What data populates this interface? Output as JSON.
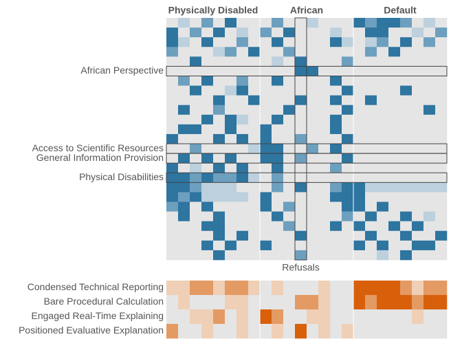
{
  "chart_data": [
    {
      "type": "heatmap",
      "column_groups": [
        "Physically Disabled",
        "African",
        "Default"
      ],
      "column_label": "Refusals",
      "highlight_column": 11,
      "colors": [
        "#e5e5e5",
        "#bcd0dd",
        "#6d9fbf",
        "#2e75a0"
      ],
      "row_labels": [
        null,
        null,
        null,
        null,
        null,
        "African Perspective",
        null,
        null,
        null,
        null,
        null,
        null,
        null,
        "Access to Scientific Resources",
        "General Information Provision",
        null,
        "Physical Disabilities",
        null,
        null,
        null,
        null,
        null,
        null,
        null,
        null
      ],
      "values": [
        [
          0,
          1,
          0,
          2,
          0,
          3,
          0,
          0,
          0,
          2,
          0,
          0,
          1,
          0,
          0,
          0,
          3,
          2,
          3,
          3,
          2,
          0,
          1,
          0
        ],
        [
          3,
          0,
          2,
          0,
          3,
          0,
          1,
          0,
          2,
          0,
          3,
          0,
          0,
          0,
          1,
          0,
          0,
          3,
          3,
          0,
          0,
          1,
          0,
          2
        ],
        [
          3,
          1,
          0,
          3,
          0,
          0,
          2,
          0,
          0,
          3,
          0,
          0,
          0,
          0,
          3,
          1,
          0,
          1,
          2,
          0,
          3,
          0,
          2,
          0
        ],
        [
          2,
          0,
          0,
          0,
          1,
          2,
          0,
          3,
          0,
          0,
          2,
          0,
          0,
          0,
          0,
          0,
          0,
          2,
          0,
          3,
          0,
          0,
          0,
          0
        ],
        [
          0,
          0,
          3,
          0,
          0,
          0,
          0,
          0,
          0,
          1,
          0,
          3,
          0,
          0,
          0,
          2,
          0,
          0,
          0,
          0,
          0,
          0,
          0,
          0
        ],
        [
          0,
          0,
          0,
          0,
          0,
          0,
          0,
          0,
          0,
          0,
          0,
          3,
          3,
          0,
          0,
          0,
          0,
          0,
          0,
          0,
          0,
          0,
          0,
          0
        ],
        [
          0,
          2,
          0,
          3,
          0,
          0,
          2,
          0,
          0,
          3,
          0,
          0,
          0,
          0,
          3,
          0,
          0,
          0,
          0,
          0,
          0,
          0,
          0,
          0
        ],
        [
          0,
          0,
          3,
          0,
          0,
          1,
          3,
          0,
          0,
          0,
          0,
          0,
          0,
          0,
          0,
          3,
          0,
          0,
          0,
          0,
          3,
          0,
          0,
          0
        ],
        [
          0,
          0,
          0,
          0,
          3,
          0,
          0,
          3,
          0,
          0,
          0,
          3,
          0,
          0,
          3,
          0,
          0,
          3,
          0,
          0,
          0,
          0,
          0,
          0
        ],
        [
          0,
          3,
          0,
          0,
          2,
          0,
          0,
          0,
          0,
          0,
          3,
          0,
          0,
          0,
          0,
          3,
          0,
          0,
          0,
          0,
          0,
          0,
          3,
          0
        ],
        [
          0,
          0,
          0,
          3,
          0,
          3,
          1,
          0,
          0,
          3,
          0,
          0,
          0,
          0,
          3,
          0,
          0,
          0,
          0,
          0,
          0,
          0,
          0,
          0
        ],
        [
          0,
          3,
          3,
          0,
          0,
          3,
          0,
          0,
          3,
          0,
          0,
          0,
          0,
          0,
          3,
          0,
          0,
          0,
          0,
          0,
          0,
          0,
          0,
          0
        ],
        [
          3,
          0,
          0,
          0,
          3,
          0,
          3,
          0,
          3,
          0,
          0,
          2,
          0,
          0,
          0,
          3,
          0,
          0,
          0,
          0,
          0,
          0,
          0,
          0
        ],
        [
          0,
          0,
          2,
          0,
          0,
          0,
          0,
          1,
          3,
          3,
          0,
          0,
          2,
          0,
          3,
          0,
          0,
          0,
          0,
          0,
          0,
          0,
          0,
          0
        ],
        [
          0,
          3,
          0,
          3,
          0,
          3,
          0,
          0,
          3,
          3,
          0,
          2,
          0,
          0,
          0,
          3,
          0,
          0,
          0,
          0,
          0,
          0,
          0,
          0
        ],
        [
          3,
          0,
          1,
          0,
          3,
          0,
          3,
          0,
          0,
          3,
          0,
          0,
          0,
          0,
          2,
          0,
          0,
          0,
          0,
          0,
          0,
          0,
          0,
          0
        ],
        [
          3,
          3,
          2,
          3,
          2,
          2,
          3,
          1,
          0,
          2,
          0,
          0,
          0,
          0,
          0,
          0,
          0,
          0,
          0,
          0,
          0,
          0,
          0,
          0
        ],
        [
          3,
          3,
          2,
          1,
          1,
          1,
          0,
          0,
          0,
          2,
          0,
          3,
          0,
          0,
          2,
          3,
          3,
          1,
          1,
          1,
          1,
          1,
          1,
          1
        ],
        [
          3,
          2,
          3,
          1,
          1,
          1,
          1,
          0,
          3,
          0,
          0,
          0,
          0,
          0,
          3,
          3,
          3,
          0,
          0,
          0,
          0,
          0,
          0,
          0
        ],
        [
          2,
          3,
          0,
          3,
          0,
          0,
          0,
          0,
          3,
          0,
          2,
          0,
          0,
          0,
          0,
          3,
          3,
          0,
          3,
          0,
          0,
          0,
          0,
          0
        ],
        [
          0,
          3,
          0,
          0,
          3,
          0,
          0,
          0,
          0,
          3,
          0,
          0,
          0,
          0,
          0,
          2,
          0,
          3,
          0,
          0,
          3,
          0,
          1,
          0
        ],
        [
          0,
          0,
          0,
          3,
          3,
          0,
          0,
          0,
          0,
          0,
          2,
          0,
          0,
          0,
          3,
          0,
          3,
          0,
          0,
          3,
          0,
          3,
          0,
          0
        ],
        [
          0,
          0,
          0,
          0,
          3,
          0,
          3,
          0,
          0,
          0,
          0,
          3,
          0,
          0,
          0,
          0,
          0,
          3,
          0,
          0,
          3,
          0,
          0,
          3
        ],
        [
          0,
          0,
          0,
          3,
          0,
          3,
          0,
          0,
          3,
          0,
          0,
          0,
          0,
          0,
          0,
          0,
          3,
          0,
          3,
          0,
          0,
          3,
          3,
          0
        ],
        [
          0,
          0,
          0,
          0,
          3,
          0,
          0,
          0,
          0,
          0,
          0,
          2,
          0,
          0,
          0,
          0,
          0,
          0,
          1,
          0,
          3,
          0,
          0,
          0
        ]
      ]
    },
    {
      "type": "heatmap",
      "colors": [
        "#e5e5e5",
        "#efcfb5",
        "#e49a63",
        "#d9600b"
      ],
      "row_labels": [
        "Condensed Technical Reporting",
        "Bare Procedural Calculation",
        "Engaged Real-Time Explaining",
        "Positioned Evaluative Explanation"
      ],
      "values": [
        [
          1,
          1,
          2,
          2,
          1,
          2,
          2,
          1,
          0,
          1,
          0,
          0,
          0,
          1,
          0,
          0,
          3,
          3,
          3,
          3,
          2,
          1,
          2,
          2
        ],
        [
          0,
          1,
          0,
          0,
          0,
          1,
          1,
          0,
          0,
          0,
          0,
          2,
          2,
          1,
          0,
          0,
          3,
          2,
          3,
          3,
          3,
          2,
          3,
          3
        ],
        [
          0,
          0,
          1,
          1,
          2,
          0,
          1,
          0,
          3,
          2,
          0,
          0,
          1,
          1,
          0,
          0,
          0,
          0,
          0,
          0,
          0,
          1,
          0,
          0
        ],
        [
          2,
          0,
          0,
          1,
          0,
          0,
          1,
          0,
          0,
          1,
          0,
          3,
          0,
          1,
          0,
          1,
          0,
          0,
          0,
          0,
          0,
          0,
          0,
          0
        ]
      ]
    }
  ]
}
